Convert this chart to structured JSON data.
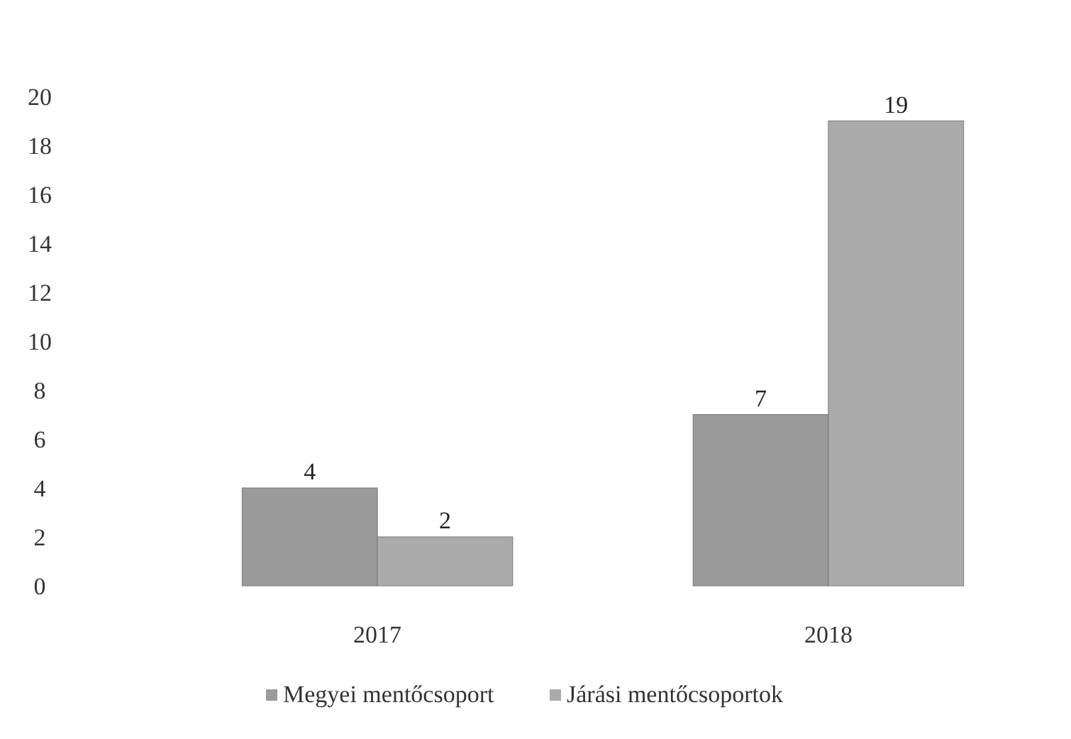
{
  "chart_data": {
    "type": "bar",
    "categories": [
      "2017",
      "2018"
    ],
    "series": [
      {
        "name": "Megyei mentőcsoport",
        "color": "#9a9a9a",
        "values": [
          4,
          7
        ]
      },
      {
        "name": "Járási mentőcsoportok",
        "color": "#ababab",
        "values": [
          2,
          19
        ]
      }
    ],
    "ylim": [
      0,
      20
    ],
    "yticks": [
      0,
      2,
      4,
      6,
      8,
      10,
      12,
      14,
      16,
      18,
      20
    ],
    "data_labels": true,
    "legend": "bottom",
    "grid": false
  }
}
